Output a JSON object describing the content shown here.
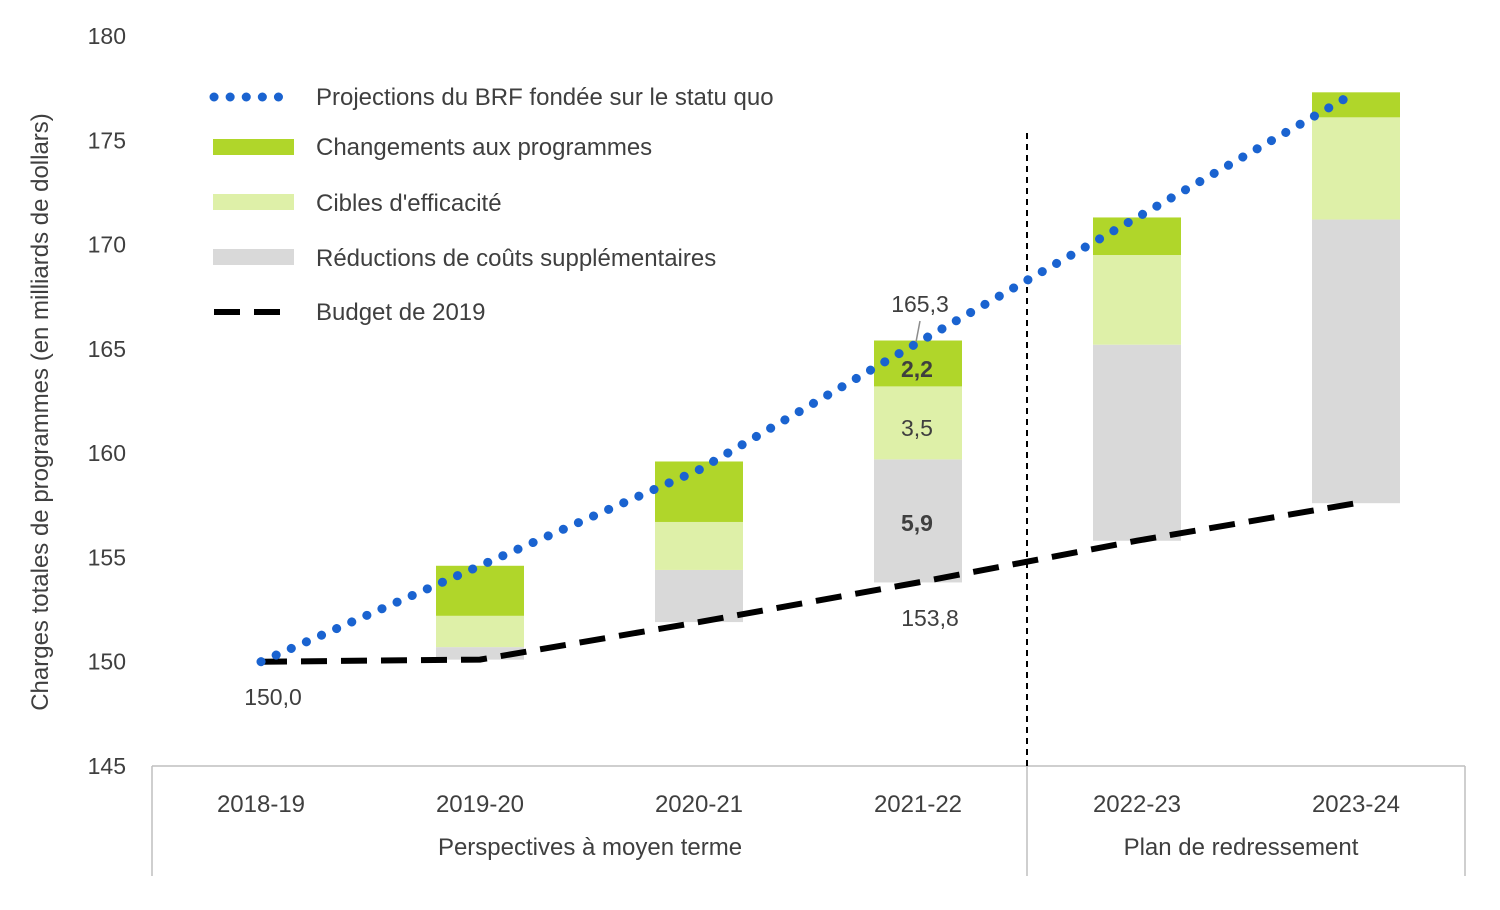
{
  "chart_data": {
    "type": "bar",
    "subtype": "stacked-range-with-lines",
    "ylabel": "Charges totales de programmes (en milliards de dollars)",
    "ylim": [
      145,
      180
    ],
    "yticks": [
      145,
      150,
      155,
      160,
      165,
      170,
      175,
      180
    ],
    "grid": false,
    "legend_position": "top-left",
    "categories": [
      "2018-19",
      "2019-20",
      "2020-21",
      "2021-22",
      "2022-23",
      "2023-24"
    ],
    "groups": [
      {
        "label": "Perspectives à moyen terme",
        "categories": [
          "2018-19",
          "2019-20",
          "2020-21",
          "2021-22"
        ]
      },
      {
        "label": "Plan de redressement",
        "categories": [
          "2022-23",
          "2023-24"
        ]
      }
    ],
    "colors": {
      "projection": "#1a63d0",
      "changements": "#b0d62a",
      "cibles": "#def0a8",
      "reductions": "#d9d9d9",
      "budget": "#000000",
      "divider": "#000000",
      "axis": "#bfbfbf"
    },
    "series": [
      {
        "key": "projection",
        "name": "Projections du BRF fondée sur le statu quo",
        "kind": "dotted-line",
        "values": [
          150.0,
          154.6,
          159.2,
          165.3,
          171.3,
          177.3
        ]
      },
      {
        "key": "changements",
        "name": "Changements aux programmes",
        "kind": "stacked-bar",
        "values": [
          null,
          2.4,
          2.9,
          2.2,
          1.8,
          1.2
        ]
      },
      {
        "key": "cibles",
        "name": "Cibles d'efficacité",
        "kind": "stacked-bar",
        "values": [
          null,
          1.5,
          2.3,
          3.5,
          4.3,
          4.9
        ]
      },
      {
        "key": "reductions",
        "name": "Réductions de coûts supplémentaires",
        "kind": "stacked-bar",
        "values": [
          null,
          0.6,
          2.5,
          5.9,
          9.4,
          13.6
        ]
      },
      {
        "key": "budget",
        "name": "Budget de 2019",
        "kind": "dashed-line",
        "values": [
          150.0,
          150.1,
          151.9,
          153.8,
          155.8,
          157.6
        ]
      }
    ],
    "annotations": {
      "start_value": "150,0",
      "projection_2021": "165,3",
      "budget_2021": "153,8",
      "bar_2021_changements": "2,2",
      "bar_2021_cibles": "3,5",
      "bar_2021_reductions": "5,9"
    }
  }
}
